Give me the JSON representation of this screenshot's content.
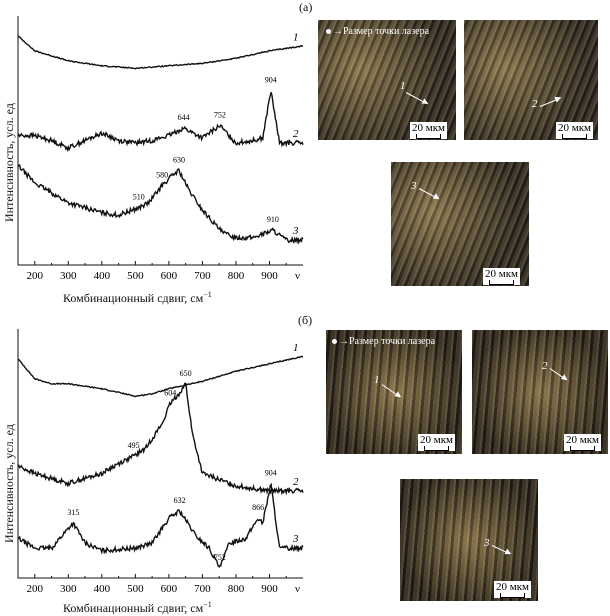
{
  "panel_a_tag": "(а)",
  "panel_b_tag": "(б)",
  "ylabel": "Интенсивность, усл. ед",
  "xlabel": "Комбинационный сдвиг, см",
  "xlabel_sup": "−1",
  "nu_symbol": "ν",
  "laser_text": "Размер точки лазера",
  "scale_text": "20 мкм",
  "chart_data": [
    {
      "type": "line",
      "panel": "(а)",
      "xlabel": "Комбинационный сдвиг, см−1",
      "ylabel": "Интенсивность, усл. ед",
      "xlim": [
        150,
        1000
      ],
      "xticks": [
        200,
        300,
        400,
        500,
        600,
        700,
        800,
        900
      ],
      "series": [
        {
          "name": "1",
          "x": [
            150,
            200,
            300,
            400,
            500,
            600,
            700,
            800,
            900,
            1000
          ],
          "y": [
            0.92,
            0.86,
            0.82,
            0.8,
            0.79,
            0.8,
            0.81,
            0.83,
            0.86,
            0.88
          ]
        },
        {
          "name": "2",
          "x": [
            150,
            200,
            250,
            300,
            350,
            400,
            450,
            500,
            550,
            600,
            644,
            700,
            752,
            800,
            850,
            880,
            904,
            930,
            1000
          ],
          "y": [
            0.52,
            0.52,
            0.5,
            0.47,
            0.5,
            0.53,
            0.5,
            0.49,
            0.5,
            0.52,
            0.55,
            0.51,
            0.56,
            0.49,
            0.5,
            0.51,
            0.7,
            0.49,
            0.49
          ]
        },
        {
          "name": "3",
          "x": [
            150,
            200,
            300,
            400,
            450,
            510,
            540,
            580,
            610,
            630,
            660,
            700,
            760,
            800,
            850,
            910,
            950,
            1000
          ],
          "y": [
            0.4,
            0.33,
            0.25,
            0.21,
            0.2,
            0.23,
            0.25,
            0.32,
            0.36,
            0.38,
            0.3,
            0.22,
            0.13,
            0.11,
            0.11,
            0.14,
            0.1,
            0.1
          ]
        }
      ],
      "peak_labels": [
        {
          "text": "644",
          "x": 644,
          "series": "2"
        },
        {
          "text": "752",
          "x": 752,
          "series": "2"
        },
        {
          "text": "904",
          "x": 904,
          "series": "2"
        },
        {
          "text": "630",
          "x": 630,
          "series": "3"
        },
        {
          "text": "580",
          "x": 580,
          "series": "3"
        },
        {
          "text": "510",
          "x": 510,
          "series": "3"
        },
        {
          "text": "910",
          "x": 910,
          "series": "3"
        }
      ]
    },
    {
      "type": "line",
      "panel": "(б)",
      "xlabel": "Комбинационный сдвиг, см−1",
      "ylabel": "Интенсивность, усл. ед",
      "xlim": [
        150,
        1000
      ],
      "xticks": [
        200,
        300,
        400,
        500,
        600,
        700,
        800,
        900
      ],
      "series": [
        {
          "name": "1",
          "x": [
            150,
            200,
            250,
            300,
            400,
            500,
            550,
            600,
            700,
            800,
            900,
            1000
          ],
          "y": [
            0.88,
            0.8,
            0.78,
            0.78,
            0.76,
            0.73,
            0.74,
            0.76,
            0.79,
            0.83,
            0.86,
            0.89
          ]
        },
        {
          "name": "2",
          "x": [
            150,
            200,
            300,
            400,
            450,
            495,
            530,
            580,
            604,
            630,
            650,
            670,
            700,
            800,
            900,
            1000
          ],
          "y": [
            0.45,
            0.42,
            0.38,
            0.42,
            0.46,
            0.49,
            0.52,
            0.62,
            0.7,
            0.74,
            0.78,
            0.58,
            0.42,
            0.37,
            0.35,
            0.35
          ]
        },
        {
          "name": "3",
          "x": [
            150,
            200,
            250,
            300,
            315,
            350,
            400,
            500,
            550,
            600,
            632,
            680,
            720,
            752,
            780,
            830,
            866,
            880,
            904,
            930,
            1000
          ],
          "y": [
            0.16,
            0.12,
            0.12,
            0.2,
            0.22,
            0.14,
            0.11,
            0.12,
            0.14,
            0.24,
            0.27,
            0.17,
            0.12,
            0.04,
            0.14,
            0.16,
            0.24,
            0.22,
            0.38,
            0.12,
            0.12
          ]
        }
      ],
      "peak_labels": [
        {
          "text": "650",
          "x": 650,
          "series": "2"
        },
        {
          "text": "604",
          "x": 604,
          "series": "2"
        },
        {
          "text": "495",
          "x": 495,
          "series": "2"
        },
        {
          "text": "315",
          "x": 315,
          "series": "3"
        },
        {
          "text": "632",
          "x": 632,
          "series": "3"
        },
        {
          "text": "752",
          "x": 752,
          "series": "3"
        },
        {
          "text": "866",
          "x": 866,
          "series": "3"
        },
        {
          "text": "904",
          "x": 904,
          "series": "3"
        }
      ]
    }
  ],
  "photos_a": [
    {
      "id": "a1",
      "marker": "1",
      "laser": true
    },
    {
      "id": "a2",
      "marker": "2",
      "laser": false
    },
    {
      "id": "a3",
      "marker": "3",
      "laser": false
    }
  ],
  "photos_b": [
    {
      "id": "b1",
      "marker": "1",
      "laser": true
    },
    {
      "id": "b2",
      "marker": "2",
      "laser": false
    },
    {
      "id": "b3",
      "marker": "3",
      "laser": false
    }
  ]
}
